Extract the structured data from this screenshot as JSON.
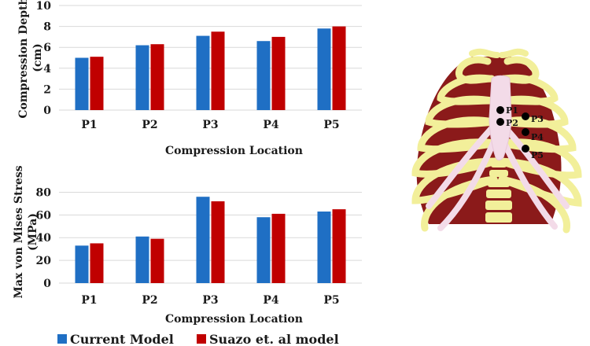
{
  "colors": {
    "current": "#1f6fc4",
    "suazo": "#c00000",
    "grid": "#d9d9d9",
    "rib_yellow": "#f2ef9a",
    "muscle": "#8b1a1a",
    "cartilage": "#f3dbe8"
  },
  "legend": [
    {
      "name": "Current Model",
      "color": "#1f6fc4"
    },
    {
      "name": "Suazo et. al  model",
      "color": "#c00000"
    }
  ],
  "chart_data": [
    {
      "type": "bar",
      "categories": [
        "P1",
        "P2",
        "P3",
        "P4",
        "P5"
      ],
      "series": [
        {
          "name": "Current Model",
          "values": [
            5.0,
            6.2,
            7.1,
            6.6,
            7.8
          ]
        },
        {
          "name": "Suazo et. al  model",
          "values": [
            5.1,
            6.3,
            7.5,
            7.0,
            8.0
          ]
        }
      ],
      "xlabel": "Compression Location",
      "ylabel": "Compression Depth\n(cm)",
      "ylim": [
        0,
        10
      ],
      "yticks": [
        0,
        2,
        4,
        6,
        8,
        10
      ],
      "grid": true
    },
    {
      "type": "bar",
      "categories": [
        "P1",
        "P2",
        "P3",
        "P4",
        "P5"
      ],
      "series": [
        {
          "name": "Current Model",
          "values": [
            33,
            41,
            76,
            58,
            63
          ]
        },
        {
          "name": "Suazo et. al  model",
          "values": [
            35,
            39,
            72,
            61,
            65
          ]
        }
      ],
      "xlabel": "Compression Location",
      "ylabel": "Max von Mises Stress\n(MPa)",
      "ylim": [
        0,
        90
      ],
      "yticks": [
        0,
        20,
        40,
        60,
        80
      ],
      "grid": true
    }
  ],
  "ribcage": {
    "points": [
      "P1",
      "P2",
      "P3",
      "P4",
      "P5"
    ]
  }
}
